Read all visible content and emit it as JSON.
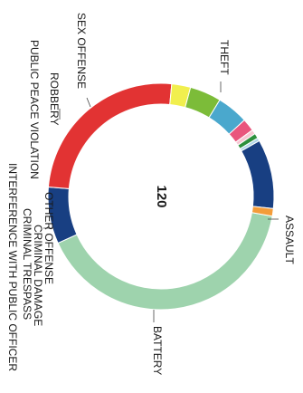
{
  "chart_data": {
    "type": "pie",
    "donut": true,
    "center_label": "120",
    "slices": [
      {
        "label": "THEFT",
        "value": 45,
        "color": "#9ed3ad"
      },
      {
        "label": "ASSAULT",
        "value": 9,
        "color": "#183f82"
      },
      {
        "label": "BATTERY",
        "value": 28,
        "color": "#e23333"
      },
      {
        "label": "",
        "value": 3,
        "color": "#f1ef4e"
      },
      {
        "label": "CRIMINAL DAMAGE",
        "value": 5,
        "color": "#7cbc39"
      },
      {
        "label": "OTHER OFFENSE",
        "value": 5,
        "color": "#4aa8cd"
      },
      {
        "label": "INTERFERENCE WITH PUBLIC OFFICER",
        "value": 2,
        "color": "#e9557d"
      },
      {
        "label": "CRIMINAL TRESPASS",
        "value": 0.7,
        "color": "#f6c7d3"
      },
      {
        "label": "PUBLIC PEACE VIOLATION",
        "value": 0.8,
        "color": "#2d8f3c"
      },
      {
        "label": "",
        "value": 0.5,
        "color": "#b2d7ea"
      },
      {
        "label": "ROBBERY",
        "value": 11,
        "color": "#183f82"
      },
      {
        "label": "",
        "value": 1.2,
        "color": "#f39c3a"
      }
    ],
    "extra_labels": [
      "SEX OFFENSE"
    ],
    "legend": "none"
  }
}
